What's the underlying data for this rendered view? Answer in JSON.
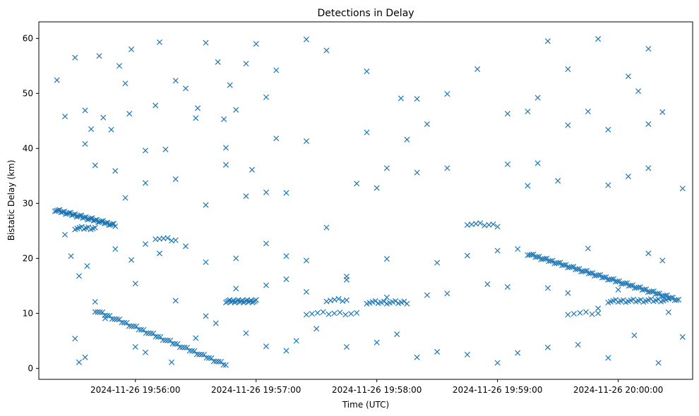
{
  "chart_data": {
    "type": "scatter",
    "title": "Detections in Delay",
    "xlabel": "Time (UTC)",
    "ylabel": "Bistatic Delay (km)",
    "marker": "x",
    "color": "#1f77b4",
    "grid": false,
    "x_axis": {
      "type": "datetime",
      "range": [
        "2024-11-26 19:55:12",
        "2024-11-26 20:00:37"
      ],
      "ticks": [
        "2024-11-26 19:56:00",
        "2024-11-26 19:57:00",
        "2024-11-26 19:58:00",
        "2024-11-26 19:59:00",
        "2024-11-26 20:00:00"
      ]
    },
    "y_axis": {
      "range": [
        -2,
        63
      ],
      "ticks": [
        0,
        10,
        20,
        30,
        40,
        50,
        60
      ]
    },
    "tracks": [
      {
        "x_start": "2024-11-26 19:55:20",
        "x_end": "2024-11-26 19:55:50",
        "y_start": 28.8,
        "y_end": 26.0,
        "count": 40
      },
      {
        "x_start": "2024-11-26 19:55:30",
        "x_end": "2024-11-26 19:55:40",
        "y_start": 25.5,
        "y_end": 25.5,
        "count": 10
      },
      {
        "x_start": "2024-11-26 19:55:40",
        "x_end": "2024-11-26 19:56:45",
        "y_start": 10.5,
        "y_end": 0.6,
        "count": 55
      },
      {
        "x_start": "2024-11-26 19:56:10",
        "x_end": "2024-11-26 19:56:20",
        "y_start": 23.7,
        "y_end": 23.3,
        "count": 6
      },
      {
        "x_start": "2024-11-26 19:56:45",
        "x_end": "2024-11-26 19:57:00",
        "y_start": 12.2,
        "y_end": 12.2,
        "count": 25
      },
      {
        "x_start": "2024-11-26 19:57:55",
        "x_end": "2024-11-26 19:58:15",
        "y_start": 12.0,
        "y_end": 12.0,
        "count": 15
      },
      {
        "x_start": "2024-11-26 19:57:25",
        "x_end": "2024-11-26 19:57:50",
        "y_start": 10.0,
        "y_end": 10.0,
        "count": 10
      },
      {
        "x_start": "2024-11-26 19:57:35",
        "x_end": "2024-11-26 19:57:45",
        "y_start": 12.4,
        "y_end": 12.4,
        "count": 6
      },
      {
        "x_start": "2024-11-26 19:59:15",
        "x_end": "2024-11-26 20:00:30",
        "y_start": 20.8,
        "y_end": 12.4,
        "count": 80
      },
      {
        "x_start": "2024-11-26 19:59:55",
        "x_end": "2024-11-26 20:00:25",
        "y_start": 12.2,
        "y_end": 12.4,
        "count": 25
      },
      {
        "x_start": "2024-11-26 19:58:45",
        "x_end": "2024-11-26 19:59:00",
        "y_start": 26.3,
        "y_end": 26.0,
        "count": 8
      },
      {
        "x_start": "2024-11-26 19:59:35",
        "x_end": "2024-11-26 19:59:50",
        "y_start": 10.0,
        "y_end": 10.0,
        "count": 6
      }
    ],
    "scatter_points": [
      [
        "2024-11-26 19:55:21",
        52.4
      ],
      [
        "2024-11-26 19:55:25",
        45.8
      ],
      [
        "2024-11-26 19:55:30",
        56.5
      ],
      [
        "2024-11-26 19:55:35",
        46.9
      ],
      [
        "2024-11-26 19:55:38",
        43.5
      ],
      [
        "2024-11-26 19:55:42",
        56.8
      ],
      [
        "2024-11-26 19:55:44",
        45.6
      ],
      [
        "2024-11-26 19:55:48",
        43.4
      ],
      [
        "2024-11-26 19:55:52",
        55.0
      ],
      [
        "2024-11-26 19:55:55",
        51.8
      ],
      [
        "2024-11-26 19:55:57",
        46.3
      ],
      [
        "2024-11-26 19:55:58",
        58.0
      ],
      [
        "2024-11-26 19:56:05",
        39.6
      ],
      [
        "2024-11-26 19:56:10",
        47.8
      ],
      [
        "2024-11-26 19:56:12",
        59.3
      ],
      [
        "2024-11-26 19:56:15",
        39.8
      ],
      [
        "2024-11-26 19:56:20",
        52.3
      ],
      [
        "2024-11-26 19:56:25",
        50.9
      ],
      [
        "2024-11-26 19:56:31",
        47.3
      ],
      [
        "2024-11-26 19:56:35",
        59.2
      ],
      [
        "2024-11-26 19:56:41",
        55.7
      ],
      [
        "2024-11-26 19:56:44",
        45.3
      ],
      [
        "2024-11-26 19:56:47",
        51.5
      ],
      [
        "2024-11-26 19:56:50",
        47.0
      ],
      [
        "2024-11-26 19:56:55",
        55.4
      ],
      [
        "2024-11-26 19:57:00",
        59.0
      ],
      [
        "2024-11-26 19:57:05",
        49.3
      ],
      [
        "2024-11-26 19:57:10",
        54.2
      ],
      [
        "2024-11-26 19:57:25",
        59.8
      ],
      [
        "2024-11-26 19:57:35",
        57.8
      ],
      [
        "2024-11-26 19:57:55",
        54.0
      ],
      [
        "2024-11-26 19:58:12",
        49.1
      ],
      [
        "2024-11-26 19:58:20",
        49.0
      ],
      [
        "2024-11-26 19:58:35",
        49.9
      ],
      [
        "2024-11-26 19:58:50",
        54.4
      ],
      [
        "2024-11-26 19:59:05",
        46.3
      ],
      [
        "2024-11-26 19:59:20",
        49.2
      ],
      [
        "2024-11-26 19:59:25",
        59.5
      ],
      [
        "2024-11-26 19:59:35",
        54.4
      ],
      [
        "2024-11-26 19:59:50",
        59.9
      ],
      [
        "2024-11-26 20:00:05",
        53.1
      ],
      [
        "2024-11-26 20:00:10",
        50.4
      ],
      [
        "2024-11-26 20:00:15",
        58.1
      ],
      [
        "2024-11-26 20:00:22",
        46.6
      ],
      [
        "2024-11-26 19:55:25",
        24.3
      ],
      [
        "2024-11-26 19:55:28",
        20.4
      ],
      [
        "2024-11-26 19:55:32",
        16.8
      ],
      [
        "2024-11-26 19:55:36",
        18.6
      ],
      [
        "2024-11-26 19:55:50",
        21.7
      ],
      [
        "2024-11-26 19:55:58",
        19.7
      ],
      [
        "2024-11-26 19:56:05",
        22.6
      ],
      [
        "2024-11-26 19:56:12",
        20.9
      ],
      [
        "2024-11-26 19:56:25",
        22.2
      ],
      [
        "2024-11-26 19:56:35",
        19.3
      ],
      [
        "2024-11-26 19:56:50",
        20.0
      ],
      [
        "2024-11-26 19:57:05",
        22.7
      ],
      [
        "2024-11-26 19:57:15",
        20.4
      ],
      [
        "2024-11-26 19:57:25",
        19.6
      ],
      [
        "2024-11-26 19:57:45",
        16.7
      ],
      [
        "2024-11-26 19:58:05",
        19.9
      ],
      [
        "2024-11-26 19:58:30",
        19.2
      ],
      [
        "2024-11-26 19:58:45",
        20.5
      ],
      [
        "2024-11-26 19:59:00",
        21.4
      ],
      [
        "2024-11-26 19:59:10",
        21.7
      ],
      [
        "2024-11-26 19:59:45",
        21.8
      ],
      [
        "2024-11-26 20:00:15",
        20.9
      ],
      [
        "2024-11-26 20:00:22",
        19.6
      ],
      [
        "2024-11-26 19:55:30",
        5.4
      ],
      [
        "2024-11-26 19:55:32",
        1.1
      ],
      [
        "2024-11-26 19:55:35",
        2.0
      ],
      [
        "2024-11-26 19:55:40",
        12.1
      ],
      [
        "2024-11-26 19:55:45",
        9.1
      ],
      [
        "2024-11-26 19:56:00",
        3.9
      ],
      [
        "2024-11-26 19:56:05",
        2.9
      ],
      [
        "2024-11-26 19:56:18",
        1.1
      ],
      [
        "2024-11-26 19:56:30",
        5.5
      ],
      [
        "2024-11-26 19:56:40",
        8.2
      ],
      [
        "2024-11-26 19:56:55",
        6.4
      ],
      [
        "2024-11-26 19:57:05",
        4.0
      ],
      [
        "2024-11-26 19:57:15",
        3.2
      ],
      [
        "2024-11-26 19:57:20",
        5.0
      ],
      [
        "2024-11-26 19:57:30",
        7.2
      ],
      [
        "2024-11-26 19:57:45",
        3.9
      ],
      [
        "2024-11-26 19:58:00",
        4.7
      ],
      [
        "2024-11-26 19:58:10",
        6.2
      ],
      [
        "2024-11-26 19:58:20",
        2.0
      ],
      [
        "2024-11-26 19:58:30",
        3.0
      ],
      [
        "2024-11-26 19:58:45",
        2.5
      ],
      [
        "2024-11-26 19:59:00",
        1.0
      ],
      [
        "2024-11-26 19:59:10",
        2.8
      ],
      [
        "2024-11-26 19:59:25",
        3.8
      ],
      [
        "2024-11-26 19:59:40",
        4.3
      ],
      [
        "2024-11-26 19:59:55",
        1.9
      ],
      [
        "2024-11-26 20:00:08",
        6.0
      ],
      [
        "2024-11-26 20:00:20",
        1.0
      ],
      [
        "2024-11-26 20:00:32",
        5.7
      ],
      [
        "2024-11-26 19:55:40",
        36.9
      ],
      [
        "2024-11-26 19:55:55",
        31.0
      ],
      [
        "2024-11-26 19:56:05",
        33.7
      ],
      [
        "2024-11-26 19:56:20",
        34.4
      ],
      [
        "2024-11-26 19:56:35",
        29.7
      ],
      [
        "2024-11-26 19:56:45",
        37.0
      ],
      [
        "2024-11-26 19:56:55",
        31.3
      ],
      [
        "2024-11-26 19:57:05",
        32.0
      ],
      [
        "2024-11-26 19:57:15",
        31.9
      ],
      [
        "2024-11-26 19:57:35",
        25.6
      ],
      [
        "2024-11-26 19:57:50",
        33.6
      ],
      [
        "2024-11-26 19:58:00",
        32.8
      ],
      [
        "2024-11-26 19:58:05",
        36.4
      ],
      [
        "2024-11-26 19:58:20",
        35.6
      ],
      [
        "2024-11-26 19:58:35",
        36.4
      ],
      [
        "2024-11-26 19:59:05",
        37.1
      ],
      [
        "2024-11-26 19:59:20",
        37.3
      ],
      [
        "2024-11-26 19:59:30",
        34.1
      ],
      [
        "2024-11-26 19:59:55",
        33.3
      ],
      [
        "2024-11-26 20:00:05",
        34.9
      ],
      [
        "2024-11-26 20:00:15",
        36.4
      ],
      [
        "2024-11-26 20:00:32",
        32.7
      ],
      [
        "2024-11-26 19:55:35",
        40.8
      ],
      [
        "2024-11-26 19:56:30",
        45.5
      ],
      [
        "2024-11-26 19:56:45",
        40.1
      ],
      [
        "2024-11-26 19:57:10",
        41.8
      ],
      [
        "2024-11-26 19:57:25",
        41.3
      ],
      [
        "2024-11-26 19:57:55",
        42.9
      ],
      [
        "2024-11-26 19:58:15",
        41.6
      ],
      [
        "2024-11-26 19:58:25",
        44.4
      ],
      [
        "2024-11-26 19:59:15",
        46.7
      ],
      [
        "2024-11-26 19:59:35",
        44.2
      ],
      [
        "2024-11-26 19:59:45",
        46.7
      ],
      [
        "2024-11-26 19:59:55",
        43.4
      ],
      [
        "2024-11-26 20:00:15",
        44.4
      ],
      [
        "2024-11-26 19:55:50",
        35.9
      ],
      [
        "2024-11-26 19:56:58",
        36.1
      ],
      [
        "2024-11-26 19:59:15",
        33.2
      ],
      [
        "2024-11-26 19:56:00",
        15.4
      ],
      [
        "2024-11-26 19:56:20",
        12.3
      ],
      [
        "2024-11-26 19:56:35",
        9.5
      ],
      [
        "2024-11-26 19:56:50",
        14.5
      ],
      [
        "2024-11-26 19:57:05",
        15.1
      ],
      [
        "2024-11-26 19:57:15",
        16.2
      ],
      [
        "2024-11-26 19:57:25",
        13.9
      ],
      [
        "2024-11-26 19:57:45",
        16.1
      ],
      [
        "2024-11-26 19:58:05",
        12.9
      ],
      [
        "2024-11-26 19:58:25",
        13.3
      ],
      [
        "2024-11-26 19:58:35",
        13.6
      ],
      [
        "2024-11-26 19:58:55",
        15.3
      ],
      [
        "2024-11-26 19:59:05",
        14.8
      ],
      [
        "2024-11-26 19:59:25",
        14.6
      ],
      [
        "2024-11-26 19:59:35",
        13.7
      ],
      [
        "2024-11-26 19:59:50",
        10.9
      ],
      [
        "2024-11-26 20:00:00",
        14.3
      ],
      [
        "2024-11-26 20:00:25",
        10.2
      ]
    ]
  }
}
